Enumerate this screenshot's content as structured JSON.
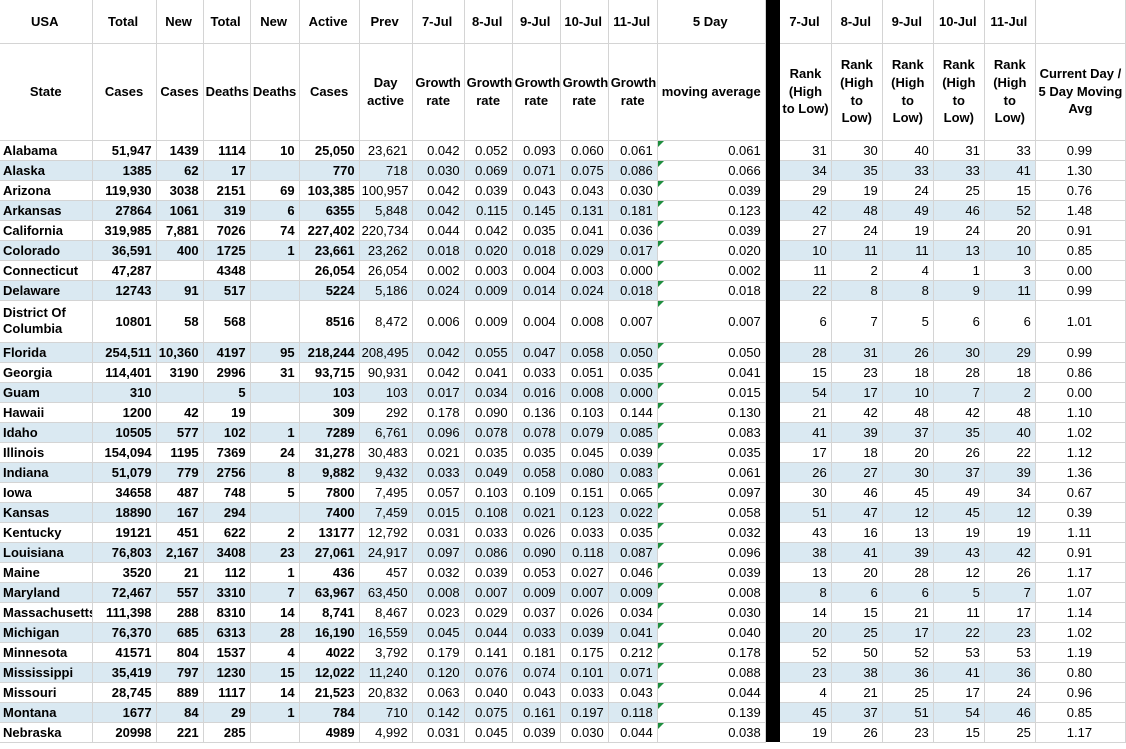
{
  "colors": {
    "stripe_fill": "#DAE9F2",
    "gridline": "#D4D4D4",
    "divider_bar": "#000000",
    "flag_triangle": "#1E8E3E"
  },
  "header_row1": [
    "USA",
    "Total",
    "New",
    "Total",
    "New",
    "Active",
    "Prev",
    "7-Jul",
    "8-Jul",
    "9-Jul",
    "10-Jul",
    "11-Jul",
    "5 Day",
    "7-Jul",
    "8-Jul",
    "9-Jul",
    "10-Jul",
    "11-Jul",
    ""
  ],
  "header_row2": [
    "State",
    "Cases",
    "Cases",
    "Deaths",
    "Deaths",
    "Cases",
    "Day active",
    "Growth rate",
    "Growth rate",
    "Growth rate",
    "Growth rate",
    "Growth rate",
    "moving average",
    "Rank (High to Low)",
    "Rank (High to Low)",
    "Rank (High to Low)",
    "Rank (High to Low)",
    "Rank (High to Low)",
    "Current Day / 5 Day Moving Avg"
  ],
  "rows": [
    {
      "state": "Alabama",
      "values": [
        "51,947",
        "1439",
        "1114",
        "10",
        "25,050",
        "23,621",
        "0.042",
        "0.052",
        "0.093",
        "0.060",
        "0.061",
        "0.061",
        "31",
        "30",
        "40",
        "31",
        "33",
        "0.99"
      ]
    },
    {
      "state": "Alaska",
      "values": [
        "1385",
        "62",
        "17",
        "",
        "770",
        "718",
        "0.030",
        "0.069",
        "0.071",
        "0.075",
        "0.086",
        "0.066",
        "34",
        "35",
        "33",
        "33",
        "41",
        "1.30"
      ]
    },
    {
      "state": "Arizona",
      "values": [
        "119,930",
        "3038",
        "2151",
        "69",
        "103,385",
        "100,957",
        "0.042",
        "0.039",
        "0.043",
        "0.043",
        "0.030",
        "0.039",
        "29",
        "19",
        "24",
        "25",
        "15",
        "0.76"
      ]
    },
    {
      "state": "Arkansas",
      "values": [
        "27864",
        "1061",
        "319",
        "6",
        "6355",
        "5,848",
        "0.042",
        "0.115",
        "0.145",
        "0.131",
        "0.181",
        "0.123",
        "42",
        "48",
        "49",
        "46",
        "52",
        "1.48"
      ]
    },
    {
      "state": "California",
      "values": [
        "319,985",
        "7,881",
        "7026",
        "74",
        "227,402",
        "220,734",
        "0.044",
        "0.042",
        "0.035",
        "0.041",
        "0.036",
        "0.039",
        "27",
        "24",
        "19",
        "24",
        "20",
        "0.91"
      ]
    },
    {
      "state": "Colorado",
      "values": [
        "36,591",
        "400",
        "1725",
        "1",
        "23,661",
        "23,262",
        "0.018",
        "0.020",
        "0.018",
        "0.029",
        "0.017",
        "0.020",
        "10",
        "11",
        "11",
        "13",
        "10",
        "0.85"
      ]
    },
    {
      "state": "Connecticut",
      "values": [
        "47,287",
        "",
        "4348",
        "",
        "26,054",
        "26,054",
        "0.002",
        "0.003",
        "0.004",
        "0.003",
        "0.000",
        "0.002",
        "11",
        "2",
        "4",
        "1",
        "3",
        "0.00"
      ]
    },
    {
      "state": "Delaware",
      "values": [
        "12743",
        "91",
        "517",
        "",
        "5224",
        "5,186",
        "0.024",
        "0.009",
        "0.014",
        "0.024",
        "0.018",
        "0.018",
        "22",
        "8",
        "8",
        "9",
        "11",
        "0.99"
      ]
    },
    {
      "state": "District Of Columbia",
      "values": [
        "10801",
        "58",
        "568",
        "",
        "8516",
        "8,472",
        "0.006",
        "0.009",
        "0.004",
        "0.008",
        "0.007",
        "0.007",
        "6",
        "7",
        "5",
        "6",
        "6",
        "1.01"
      ]
    },
    {
      "state": "Florida",
      "values": [
        "254,511",
        "10,360",
        "4197",
        "95",
        "218,244",
        "208,495",
        "0.042",
        "0.055",
        "0.047",
        "0.058",
        "0.050",
        "0.050",
        "28",
        "31",
        "26",
        "30",
        "29",
        "0.99"
      ]
    },
    {
      "state": "Georgia",
      "values": [
        "114,401",
        "3190",
        "2996",
        "31",
        "93,715",
        "90,931",
        "0.042",
        "0.041",
        "0.033",
        "0.051",
        "0.035",
        "0.041",
        "15",
        "23",
        "18",
        "28",
        "18",
        "0.86"
      ]
    },
    {
      "state": "Guam",
      "values": [
        "310",
        "",
        "5",
        "",
        "103",
        "103",
        "0.017",
        "0.034",
        "0.016",
        "0.008",
        "0.000",
        "0.015",
        "54",
        "17",
        "10",
        "7",
        "2",
        "0.00"
      ]
    },
    {
      "state": "Hawaii",
      "values": [
        "1200",
        "42",
        "19",
        "",
        "309",
        "292",
        "0.178",
        "0.090",
        "0.136",
        "0.103",
        "0.144",
        "0.130",
        "21",
        "42",
        "48",
        "42",
        "48",
        "1.10"
      ]
    },
    {
      "state": "Idaho",
      "values": [
        "10505",
        "577",
        "102",
        "1",
        "7289",
        "6,761",
        "0.096",
        "0.078",
        "0.078",
        "0.079",
        "0.085",
        "0.083",
        "41",
        "39",
        "37",
        "35",
        "40",
        "1.02"
      ]
    },
    {
      "state": "Illinois",
      "values": [
        "154,094",
        "1195",
        "7369",
        "24",
        "31,278",
        "30,483",
        "0.021",
        "0.035",
        "0.035",
        "0.045",
        "0.039",
        "0.035",
        "17",
        "18",
        "20",
        "26",
        "22",
        "1.12"
      ]
    },
    {
      "state": "Indiana",
      "values": [
        "51,079",
        "779",
        "2756",
        "8",
        "9,882",
        "9,432",
        "0.033",
        "0.049",
        "0.058",
        "0.080",
        "0.083",
        "0.061",
        "26",
        "27",
        "30",
        "37",
        "39",
        "1.36"
      ]
    },
    {
      "state": "Iowa",
      "values": [
        "34658",
        "487",
        "748",
        "5",
        "7800",
        "7,495",
        "0.057",
        "0.103",
        "0.109",
        "0.151",
        "0.065",
        "0.097",
        "30",
        "46",
        "45",
        "49",
        "34",
        "0.67"
      ]
    },
    {
      "state": "Kansas",
      "values": [
        "18890",
        "167",
        "294",
        "",
        "7400",
        "7,459",
        "0.015",
        "0.108",
        "0.021",
        "0.123",
        "0.022",
        "0.058",
        "51",
        "47",
        "12",
        "45",
        "12",
        "0.39"
      ]
    },
    {
      "state": "Kentucky",
      "values": [
        "19121",
        "451",
        "622",
        "2",
        "13177",
        "12,792",
        "0.031",
        "0.033",
        "0.026",
        "0.033",
        "0.035",
        "0.032",
        "43",
        "16",
        "13",
        "19",
        "19",
        "1.11"
      ]
    },
    {
      "state": "Louisiana",
      "values": [
        "76,803",
        "2,167",
        "3408",
        "23",
        "27,061",
        "24,917",
        "0.097",
        "0.086",
        "0.090",
        "0.118",
        "0.087",
        "0.096",
        "38",
        "41",
        "39",
        "43",
        "42",
        "0.91"
      ]
    },
    {
      "state": "Maine",
      "values": [
        "3520",
        "21",
        "112",
        "1",
        "436",
        "457",
        "0.032",
        "0.039",
        "0.053",
        "0.027",
        "0.046",
        "0.039",
        "13",
        "20",
        "28",
        "12",
        "26",
        "1.17"
      ]
    },
    {
      "state": "Maryland",
      "values": [
        "72,467",
        "557",
        "3310",
        "7",
        "63,967",
        "63,450",
        "0.008",
        "0.007",
        "0.009",
        "0.007",
        "0.009",
        "0.008",
        "8",
        "6",
        "6",
        "5",
        "7",
        "1.07"
      ]
    },
    {
      "state": "Massachusetts",
      "values": [
        "111,398",
        "288",
        "8310",
        "14",
        "8,741",
        "8,467",
        "0.023",
        "0.029",
        "0.037",
        "0.026",
        "0.034",
        "0.030",
        "14",
        "15",
        "21",
        "11",
        "17",
        "1.14"
      ]
    },
    {
      "state": "Michigan",
      "values": [
        "76,370",
        "685",
        "6313",
        "28",
        "16,190",
        "16,559",
        "0.045",
        "0.044",
        "0.033",
        "0.039",
        "0.041",
        "0.040",
        "20",
        "25",
        "17",
        "22",
        "23",
        "1.02"
      ]
    },
    {
      "state": "Minnesota",
      "values": [
        "41571",
        "804",
        "1537",
        "4",
        "4022",
        "3,792",
        "0.179",
        "0.141",
        "0.181",
        "0.175",
        "0.212",
        "0.178",
        "52",
        "50",
        "52",
        "53",
        "53",
        "1.19"
      ]
    },
    {
      "state": "Mississippi",
      "values": [
        "35,419",
        "797",
        "1230",
        "15",
        "12,022",
        "11,240",
        "0.120",
        "0.076",
        "0.074",
        "0.101",
        "0.071",
        "0.088",
        "23",
        "38",
        "36",
        "41",
        "36",
        "0.80"
      ]
    },
    {
      "state": "Missouri",
      "values": [
        "28,745",
        "889",
        "1117",
        "14",
        "21,523",
        "20,832",
        "0.063",
        "0.040",
        "0.043",
        "0.033",
        "0.043",
        "0.044",
        "4",
        "21",
        "25",
        "17",
        "24",
        "0.96"
      ]
    },
    {
      "state": "Montana",
      "values": [
        "1677",
        "84",
        "29",
        "1",
        "784",
        "710",
        "0.142",
        "0.075",
        "0.161",
        "0.197",
        "0.118",
        "0.139",
        "45",
        "37",
        "51",
        "54",
        "46",
        "0.85"
      ]
    },
    {
      "state": "Nebraska",
      "values": [
        "20998",
        "221",
        "285",
        "",
        "4989",
        "4,992",
        "0.031",
        "0.045",
        "0.039",
        "0.030",
        "0.044",
        "0.038",
        "19",
        "26",
        "23",
        "15",
        "25",
        "1.17"
      ]
    }
  ]
}
